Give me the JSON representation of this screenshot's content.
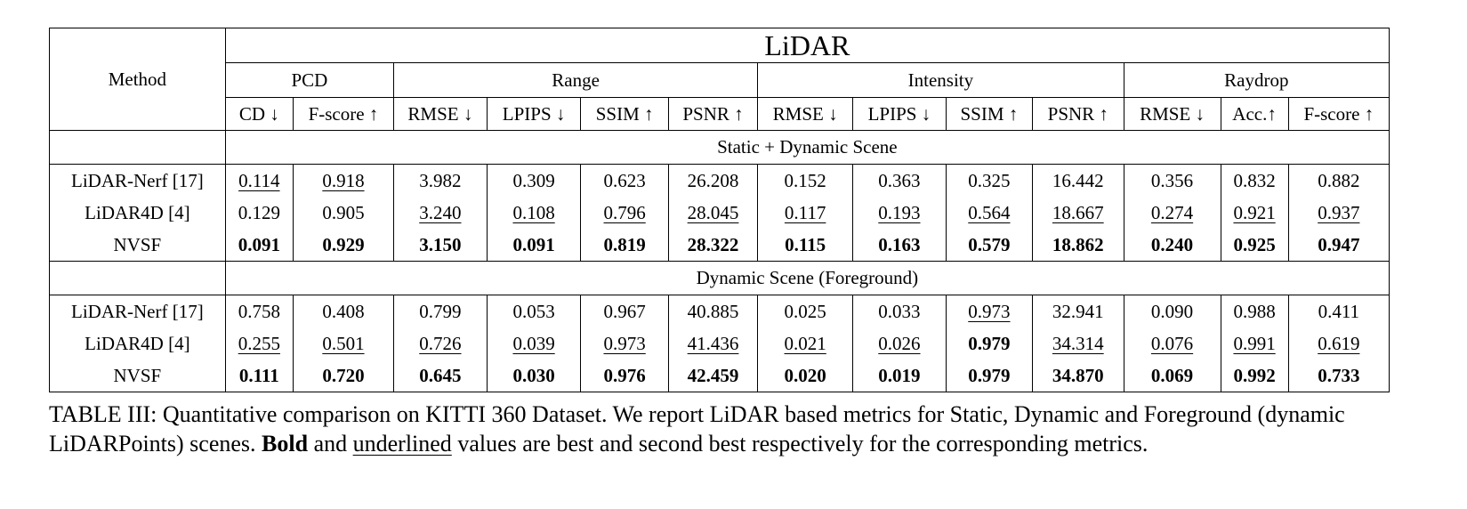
{
  "table": {
    "method_header": "Method",
    "title": "LiDAR",
    "groups": [
      "PCD",
      "Range",
      "Intensity",
      "Raydrop"
    ],
    "metrics": [
      "CD ↓",
      "F-score ↑",
      "RMSE ↓",
      "LPIPS ↓",
      "SSIM ↑",
      "PSNR ↑",
      "RMSE ↓",
      "LPIPS ↓",
      "SSIM ↑",
      "PSNR ↑",
      "RMSE ↓",
      "Acc.↑",
      "F-score ↑"
    ],
    "sections": [
      {
        "title": "Static + Dynamic Scene",
        "rows": [
          {
            "method": "LiDAR-Nerf [17]",
            "values": [
              "0.114",
              "0.918",
              "3.982",
              "0.309",
              "0.623",
              "26.208",
              "0.152",
              "0.363",
              "0.325",
              "16.442",
              "0.356",
              "0.832",
              "0.882"
            ],
            "styles": [
              "u",
              "u",
              "",
              "",
              "",
              "",
              "",
              "",
              "",
              "",
              "",
              "",
              ""
            ]
          },
          {
            "method": "LiDAR4D [4]",
            "values": [
              "0.129",
              "0.905",
              "3.240",
              "0.108",
              "0.796",
              "28.045",
              "0.117",
              "0.193",
              "0.564",
              "18.667",
              "0.274",
              "0.921",
              "0.937"
            ],
            "styles": [
              "",
              "",
              "u",
              "u",
              "u",
              "u",
              "u",
              "u",
              "u",
              "u",
              "u",
              "u",
              "u"
            ]
          },
          {
            "method": "NVSF",
            "values": [
              "0.091",
              "0.929",
              "3.150",
              "0.091",
              "0.819",
              "28.322",
              "0.115",
              "0.163",
              "0.579",
              "18.862",
              "0.240",
              "0.925",
              "0.947"
            ],
            "styles": [
              "b",
              "b",
              "b",
              "b",
              "b",
              "b",
              "b",
              "b",
              "b",
              "b",
              "b",
              "b",
              "b"
            ]
          }
        ]
      },
      {
        "title": "Dynamic Scene (Foreground)",
        "rows": [
          {
            "method": "LiDAR-Nerf [17]",
            "values": [
              "0.758",
              "0.408",
              "0.799",
              "0.053",
              "0.967",
              "40.885",
              "0.025",
              "0.033",
              "0.973",
              "32.941",
              "0.090",
              "0.988",
              "0.411"
            ],
            "styles": [
              "",
              "",
              "",
              "",
              "",
              "",
              "",
              "",
              "u",
              "",
              "",
              "",
              ""
            ]
          },
          {
            "method": "LiDAR4D [4]",
            "values": [
              "0.255",
              "0.501",
              "0.726",
              "0.039",
              "0.973",
              "41.436",
              "0.021",
              "0.026",
              "0.979",
              "34.314",
              "0.076",
              "0.991",
              "0.619"
            ],
            "styles": [
              "u",
              "u",
              "u",
              "u",
              "u",
              "u",
              "u",
              "u",
              "b",
              "u",
              "u",
              "u",
              "u"
            ]
          },
          {
            "method": "NVSF",
            "values": [
              "0.111",
              "0.720",
              "0.645",
              "0.030",
              "0.976",
              "42.459",
              "0.020",
              "0.019",
              "0.979",
              "34.870",
              "0.069",
              "0.992",
              "0.733"
            ],
            "styles": [
              "b",
              "b",
              "b",
              "b",
              "b",
              "b",
              "b",
              "b",
              "b",
              "b",
              "b",
              "b",
              "b"
            ]
          }
        ]
      }
    ]
  },
  "caption": {
    "lead": "TABLE III: Quantitative comparison on KITTI 360 Dataset. We report LiDAR based metrics for Static, Dynamic and Foreground (dynamic LiDARPoints) scenes. ",
    "bold_word": "Bold",
    "and_word": " and ",
    "underlined_word": "underlined",
    "tail": " values are best and second best respectively for the corresponding metrics."
  }
}
